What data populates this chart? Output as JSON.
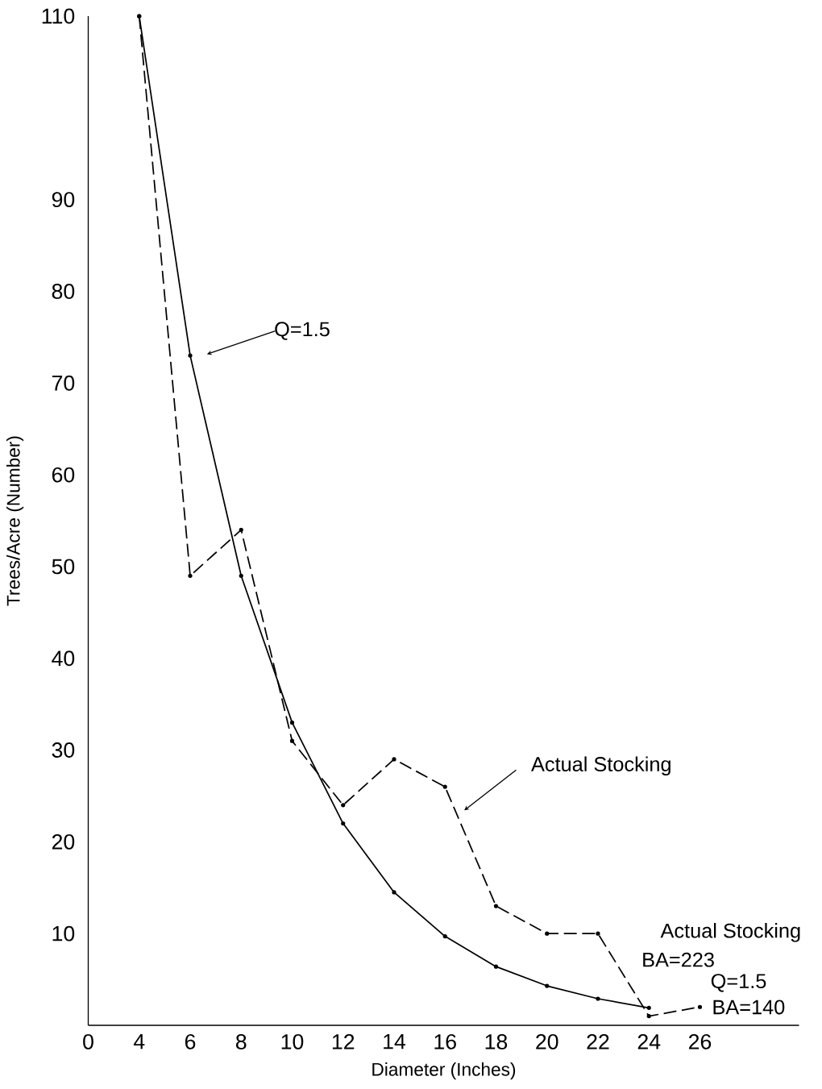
{
  "chart_data": {
    "type": "line",
    "xlabel": "Diameter (Inches)",
    "ylabel": "Trees/Acre (Number)",
    "categories": [
      "0",
      "4",
      "6",
      "8",
      "10",
      "12",
      "14",
      "16",
      "18",
      "20",
      "22",
      "24",
      "26"
    ],
    "ylim": [
      0,
      110
    ],
    "yticks": [
      10,
      20,
      30,
      40,
      50,
      60,
      70,
      80,
      90,
      110
    ],
    "series": [
      {
        "color": "#000000",
        "line_style": "solid",
        "values": [
          null,
          110,
          73,
          49,
          33,
          22,
          14.5,
          9.7,
          6.4,
          4.3,
          2.9,
          1.9,
          null
        ]
      },
      {
        "color": "#000000",
        "line_style": "dashed",
        "values": [
          null,
          110,
          49,
          54,
          31,
          24,
          29,
          26,
          13,
          10,
          10,
          1,
          2
        ]
      }
    ],
    "marker": "circle",
    "grid": false,
    "annotations": [
      "Q=1.5",
      "Actual Stocking",
      "Actual Stocking",
      "BA=223",
      "Q=1.5",
      "BA=140"
    ]
  }
}
